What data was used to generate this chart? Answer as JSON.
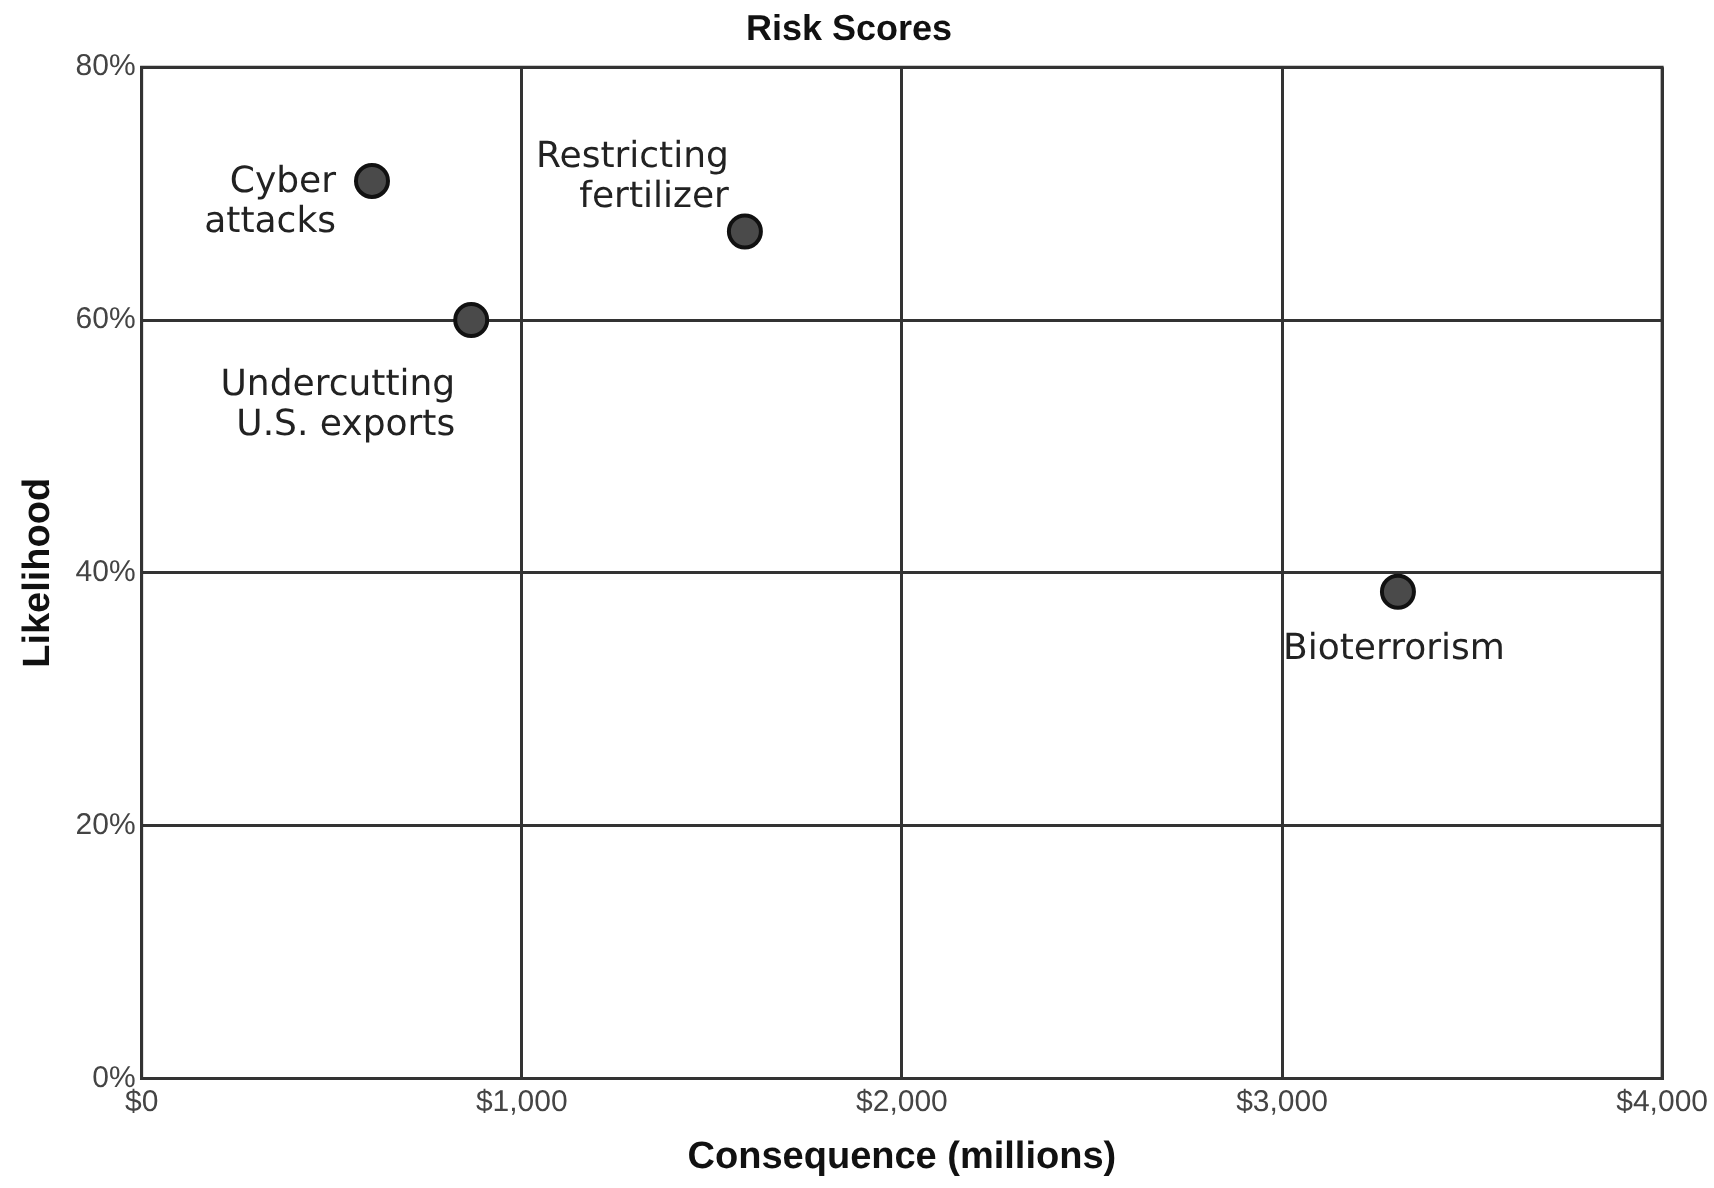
{
  "chart_data": {
    "type": "scatter",
    "title": "Risk Scores",
    "xlabel": "Consequence (millions)",
    "ylabel": "Likelihood",
    "x": [
      606,
      867,
      1587,
      3305
    ],
    "values": [
      71,
      60,
      67,
      38.5
    ],
    "color": "#4a4a4a",
    "marker": "circle",
    "xlim": [
      0,
      4000
    ],
    "xticks": [
      {
        "value": 0,
        "label": "$0"
      },
      {
        "value": 1000,
        "label": "$1,000"
      },
      {
        "value": 2000,
        "label": "$2,000"
      },
      {
        "value": 3000,
        "label": "$3,000"
      },
      {
        "value": 4000,
        "label": "$4,000"
      }
    ],
    "ylim": [
      0,
      80
    ],
    "yticks": [
      {
        "value": 0,
        "label": "0%"
      },
      {
        "value": 20,
        "label": "20%"
      },
      {
        "value": 40,
        "label": "40%"
      },
      {
        "value": 60,
        "label": "60%"
      },
      {
        "value": 80,
        "label": "80%"
      }
    ],
    "grid": true,
    "legend": false,
    "annotations": [
      {
        "text": "Cyber\nattacks",
        "x": 606,
        "y": 71
      },
      {
        "text": "Undercutting\nU.S. exports",
        "x": 867,
        "y": 60
      },
      {
        "text": "Restricting\nfertilizer",
        "x": 1587,
        "y": 67
      },
      {
        "text": "Bioterrorism",
        "x": 3305,
        "y": 38.5
      }
    ]
  }
}
